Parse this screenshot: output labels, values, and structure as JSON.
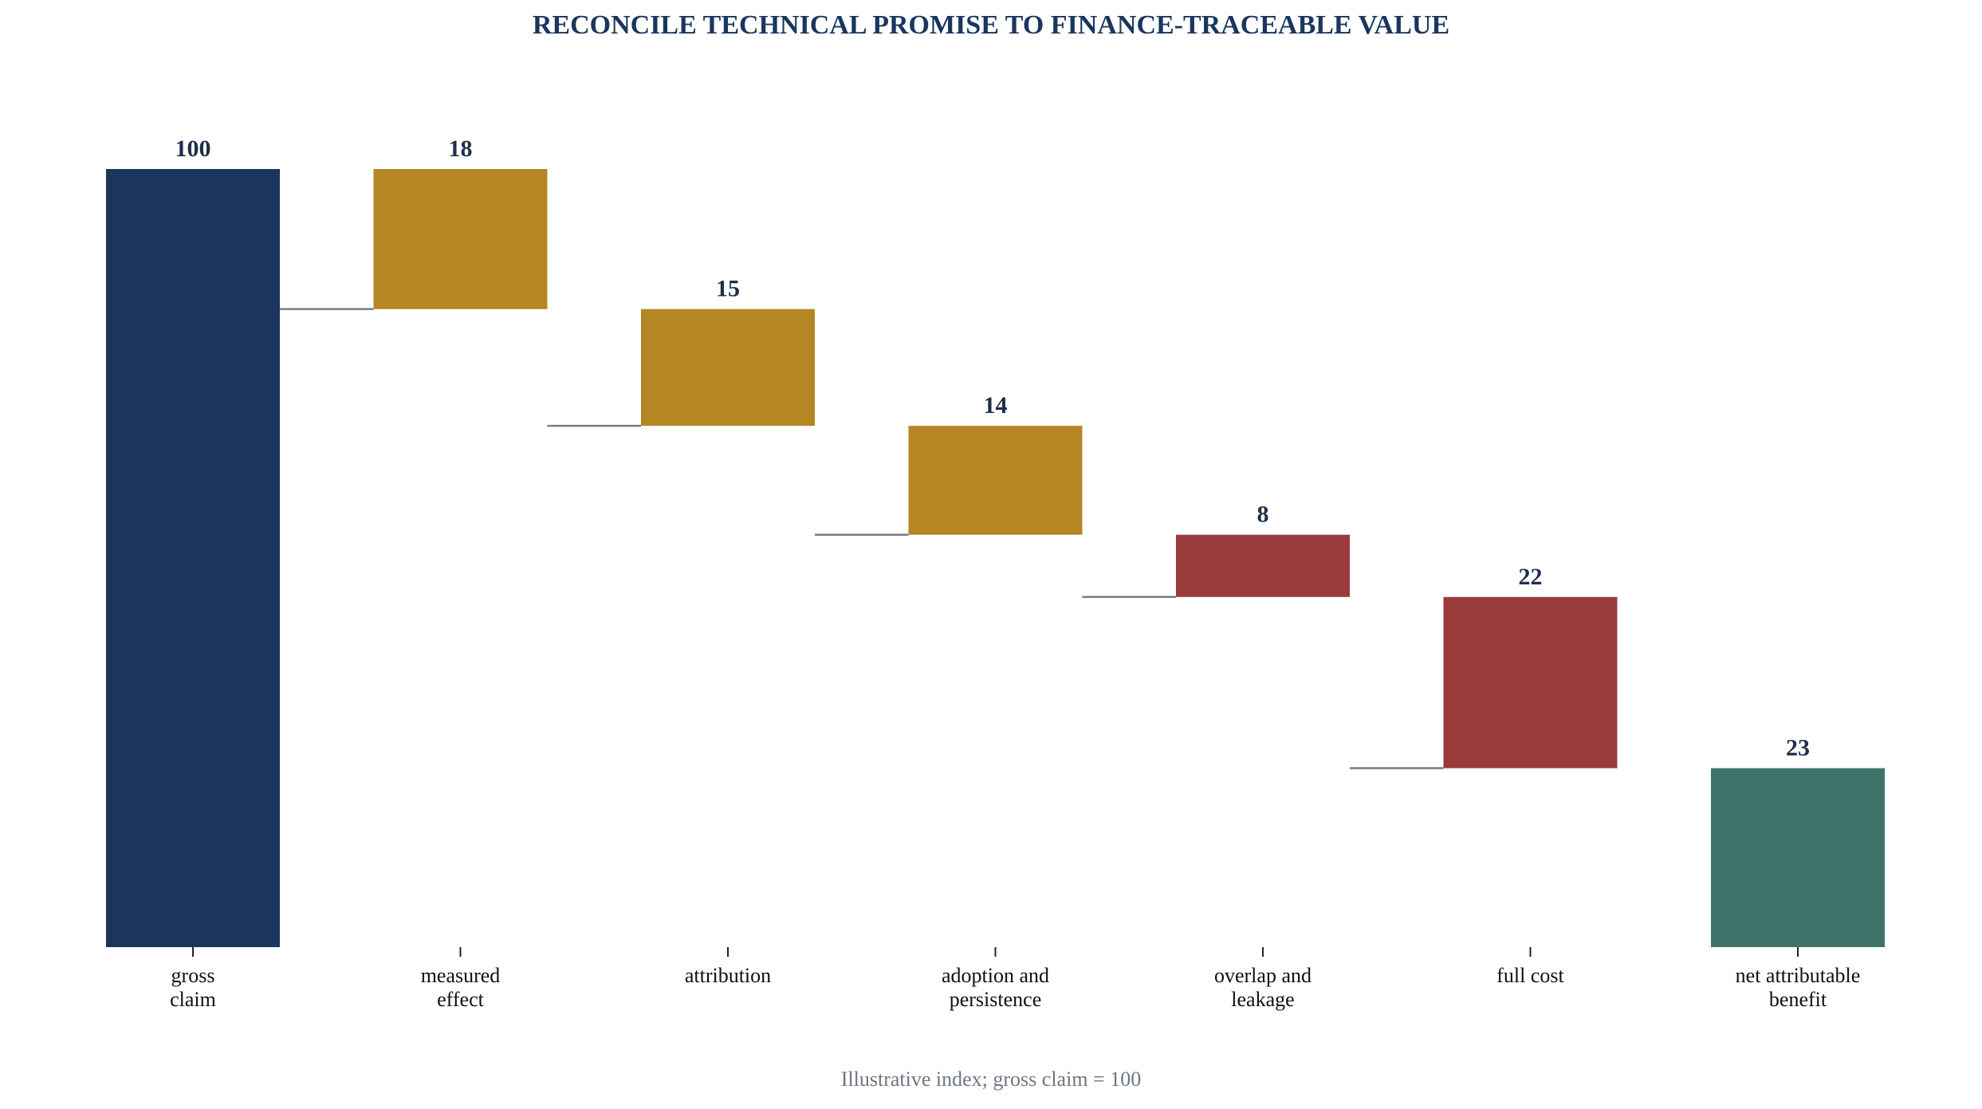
{
  "chart_data": {
    "type": "bar",
    "subtype": "waterfall",
    "title": "RECONCILE TECHNICAL PROMISE TO FINANCE-TRACEABLE VALUE",
    "subtitle": "",
    "xlabel": "",
    "ylabel": "",
    "footnote": "Illustrative index; gross claim = 100",
    "ylim": [
      0,
      100
    ],
    "grid": false,
    "legend": "none",
    "categories": [
      [
        "gross",
        "claim"
      ],
      [
        "measured",
        "effect"
      ],
      [
        "attribution"
      ],
      [
        "adoption and",
        "persistence"
      ],
      [
        "overlap and",
        "leakage"
      ],
      [
        "full cost"
      ],
      [
        "net attributable",
        "benefit"
      ]
    ],
    "values": [
      100,
      18,
      15,
      14,
      8,
      22,
      23
    ],
    "kinds": [
      "total",
      "reduction",
      "reduction",
      "reduction",
      "reduction",
      "reduction",
      "total"
    ],
    "value_labels": [
      "100",
      "18",
      "15",
      "14",
      "8",
      "22",
      "23"
    ],
    "colors": {
      "total_start": "#1a365d",
      "reduction_gold": "#b48624",
      "reduction_red": "#9a3b3b",
      "total_end": "#3e756b",
      "connector": "#6f7f8c",
      "title": "#1a365d",
      "value_label": "#1f2f4a",
      "tick_label": "#111111",
      "footnote": "#6f7680"
    },
    "bar_colors": [
      "total_start",
      "reduction_gold",
      "reduction_gold",
      "reduction_gold",
      "reduction_red",
      "reduction_red",
      "total_end"
    ]
  }
}
